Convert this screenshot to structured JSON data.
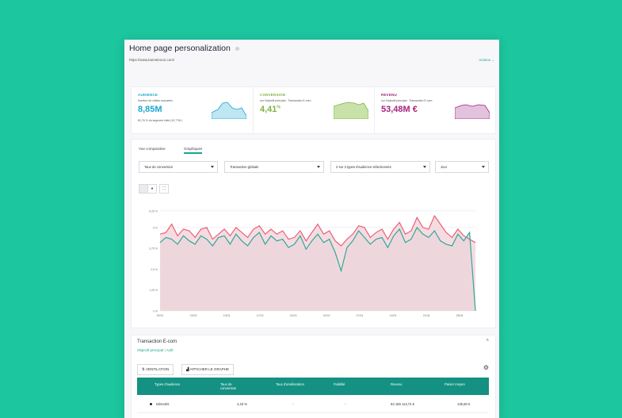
{
  "header": {
    "title": "Home page personalization",
    "url": "https://www.kameleoon.com/",
    "actions_label": "Actions"
  },
  "kpis": [
    {
      "label": "AUDIENCE",
      "sub": "Nombre de visites exposées",
      "value": "8,85M",
      "sup": "",
      "foot": "82,76 % du segment ciblé (10,77M )",
      "color": "#1ba7cf"
    },
    {
      "label": "CONVERSION",
      "sub": "sur l'objectif principal : Transaction E-com",
      "value": "4,41",
      "sup": "%",
      "foot": "",
      "color": "#7cb342"
    },
    {
      "label": "REVENU",
      "sub": "sur l'objectif principal : Transaction E-com",
      "value": "53,48M €",
      "sup": "",
      "foot": "",
      "color": "#a5237e"
    }
  ],
  "tabs": [
    {
      "label": "Vue comparative",
      "active": false
    },
    {
      "label": "Graphiques",
      "active": true
    }
  ],
  "selects": [
    {
      "value": "Taux de conversion"
    },
    {
      "value": "Transaction globale"
    },
    {
      "value": "2 sur 3 types d'audience sélectionnés"
    },
    {
      "value": "Jour"
    }
  ],
  "chart_data": {
    "type": "area",
    "title": "",
    "xlabel": "",
    "ylabel": "",
    "ylim": [
      0,
      5
    ],
    "yticks": [
      "0 %",
      "1,25 %",
      "2,5 %",
      "3,75 %",
      "5 %",
      "6,25 %"
    ],
    "xticks": [
      "25/02",
      "03/03",
      "10/03",
      "17/03",
      "24/03",
      "31/03",
      "07/04",
      "14/04",
      "21/04",
      "28/04"
    ],
    "grid": true,
    "series": [
      {
        "name": "",
        "color": "#e8617a",
        "values": [
          4.6,
          4.7,
          5.2,
          4.5,
          4.9,
          4.8,
          4.4,
          4.9,
          5.0,
          4.3,
          4.6,
          4.9,
          4.5,
          5.0,
          4.7,
          4.4,
          4.9,
          5.1,
          4.6,
          4.9,
          4.6,
          4.8,
          4.3,
          4.4,
          4.8,
          4.2,
          4.7,
          5.2,
          4.6,
          4.8,
          4.2,
          3.9,
          4.3,
          4.6,
          5.1,
          5.0,
          4.4,
          4.7,
          4.9,
          4.3,
          4.9,
          5.3,
          4.6,
          4.8,
          5.6,
          5.0,
          4.9,
          5.7,
          5.2,
          4.7,
          4.4,
          4.9,
          4.5,
          4.3,
          4.1
        ]
      },
      {
        "name": "",
        "color": "#2ea89a",
        "values": [
          4.1,
          4.4,
          4.3,
          4.0,
          4.5,
          4.2,
          4.0,
          4.5,
          4.3,
          3.9,
          4.4,
          4.5,
          4.0,
          4.6,
          4.2,
          3.9,
          4.4,
          4.7,
          4.0,
          4.5,
          4.2,
          4.3,
          3.8,
          4.0,
          4.5,
          3.7,
          4.2,
          4.6,
          4.1,
          4.3,
          3.5,
          2.4,
          3.8,
          4.2,
          4.8,
          4.4,
          4.0,
          4.3,
          4.4,
          3.8,
          4.5,
          4.9,
          4.1,
          4.3,
          5.0,
          4.6,
          4.4,
          4.8,
          4.2,
          4.0,
          3.9,
          4.6,
          4.2,
          4.7,
          0.0
        ]
      }
    ]
  },
  "ecom": {
    "title": "Transaction E-com",
    "primary": "Objectif principal",
    "sep": "|",
    "status": "Actif",
    "btn_ventilation": "VENTILATION",
    "btn_graph": "AFFICHER LE GRAPHE",
    "columns": [
      "Types d'audience",
      "Taux de conversion",
      "Taux d'amélioration",
      "Fiabilité",
      "Revenu",
      "Panier moyen"
    ],
    "row": [
      "Détectés",
      "4,33 %",
      "-",
      "-",
      "63 169 113,74 €",
      "135,60 €"
    ]
  }
}
